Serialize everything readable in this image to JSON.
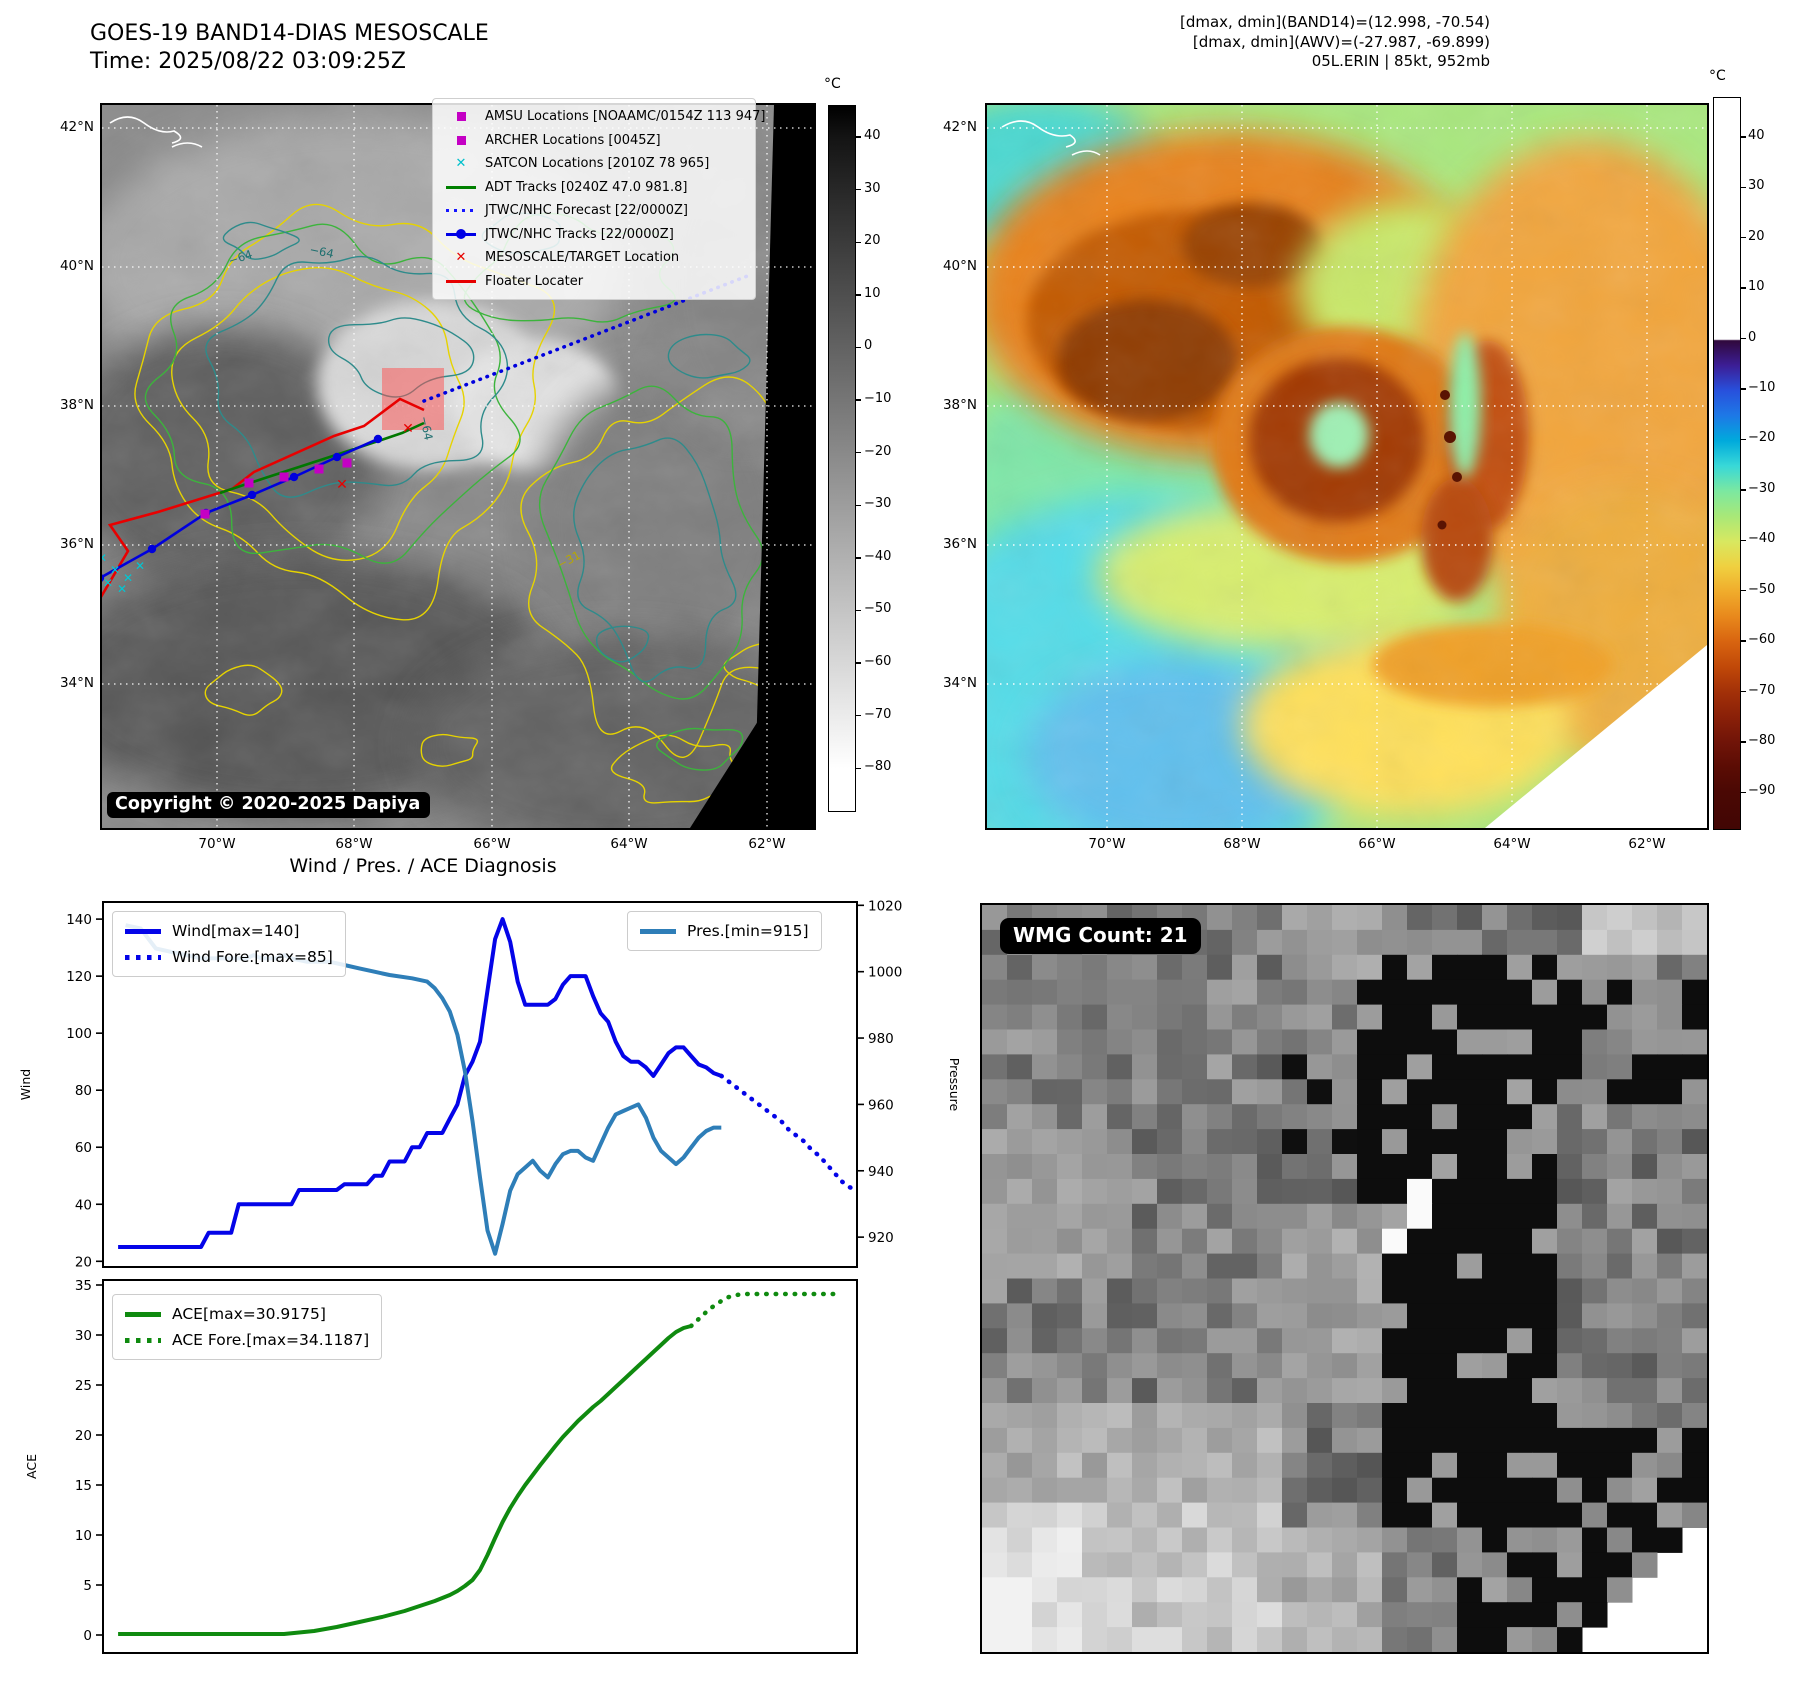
{
  "header": {
    "title_line1": "GOES-19 BAND14-DIAS MESOSCALE",
    "title_line2": "Time: 2025/08/22 03:09:25Z",
    "info_line1": "[dmax, dmin](BAND14)=(12.998, -70.54)",
    "info_line2": "[dmax, dmin](AWV)=(-27.987, -69.899)",
    "info_line3": "05L.ERIN | 85kt, 952mb"
  },
  "band14_map": {
    "lat_labels": [
      "42°N",
      "40°N",
      "38°N",
      "36°N",
      "34°N"
    ],
    "lon_labels": [
      "70°W",
      "68°W",
      "66°W",
      "64°W",
      "62°W"
    ],
    "colorbar_unit": "°C",
    "colorbar_ticks": [
      40,
      30,
      20,
      10,
      0,
      -10,
      -20,
      -30,
      -40,
      -50,
      -60,
      -70,
      -80
    ],
    "watermark": "Copyright © 2020-2025 Dapiya",
    "contour_labels": [
      "−64",
      "−64",
      "−64",
      "−31"
    ],
    "legend": [
      {
        "marker": "square",
        "color": "#c400c4",
        "label": "AMSU Locations [NOAAMC/0154Z 113 947]"
      },
      {
        "marker": "square",
        "color": "#c400c4",
        "label": "ARCHER Locations [0045Z]"
      },
      {
        "marker": "x",
        "color": "#00c0cc",
        "label": "SATCON Locations [2010Z 78 965]"
      },
      {
        "marker": "line",
        "color": "#008000",
        "label": "ADT Tracks [0240Z 47.0 981.8]"
      },
      {
        "marker": "dotted",
        "color": "#1515ff",
        "label": "JTWC/NHC Forecast [22/0000Z]"
      },
      {
        "marker": "line-dot",
        "color": "#0000e6",
        "label": "JTWC/NHC Tracks [22/0000Z]"
      },
      {
        "marker": "x",
        "color": "#e60000",
        "label": "MESOSCALE/TARGET Location"
      },
      {
        "marker": "line",
        "color": "#e60000",
        "label": "Floater Locater"
      }
    ]
  },
  "awv_map": {
    "lat_labels": [
      "42°N",
      "40°N",
      "38°N",
      "36°N",
      "34°N"
    ],
    "lon_labels": [
      "70°W",
      "68°W",
      "66°W",
      "64°W",
      "62°W"
    ],
    "colorbar_unit": "°C",
    "colorbar_ticks": [
      40,
      30,
      20,
      10,
      0,
      -10,
      -20,
      -30,
      -40,
      -50,
      -60,
      -70,
      -80,
      -90
    ]
  },
  "wmg": {
    "count_label": "WMG Count: 21"
  },
  "diagnosis_title": "Wind / Pres. / ACE Diagnosis",
  "chart_data": [
    {
      "type": "line",
      "title": "Wind / Pres. / ACE Diagnosis",
      "ylabel_left": "Wind",
      "ylabel_right": "Pressure",
      "yticks_left": [
        20,
        40,
        60,
        80,
        100,
        120,
        140
      ],
      "yticks_right": [
        920,
        940,
        960,
        980,
        1000,
        1020
      ],
      "ylim_left": [
        18,
        146
      ],
      "ylim_right": [
        911,
        1021
      ],
      "xlim": [
        0,
        100
      ],
      "grid": false,
      "legend_left": [
        {
          "label": "Wind[max=140]",
          "style": "solid",
          "color": "#0404e8"
        },
        {
          "label": "Wind Fore.[max=85]",
          "style": "dotted",
          "color": "#0404e8"
        }
      ],
      "legend_right": [
        {
          "label": "Pres.[min=915]",
          "style": "solid",
          "color": "#2e7eb8"
        }
      ],
      "series": [
        {
          "name": "Wind",
          "axis": "left",
          "style": "solid",
          "color": "#0404e8",
          "points": [
            [
              2,
              25
            ],
            [
              13,
              25
            ],
            [
              14,
              30
            ],
            [
              17,
              30
            ],
            [
              18,
              40
            ],
            [
              25,
              40
            ],
            [
              26,
              45
            ],
            [
              31,
              45
            ],
            [
              32,
              47
            ],
            [
              35,
              47
            ],
            [
              36,
              50
            ],
            [
              37,
              50
            ],
            [
              38,
              55
            ],
            [
              40,
              55
            ],
            [
              41,
              60
            ],
            [
              42,
              60
            ],
            [
              43,
              65
            ],
            [
              45,
              65
            ],
            [
              46,
              70
            ],
            [
              47,
              75
            ],
            [
              48,
              85
            ],
            [
              49,
              90
            ],
            [
              50,
              97
            ],
            [
              51,
              115
            ],
            [
              52,
              133
            ],
            [
              53,
              140
            ],
            [
              54,
              132
            ],
            [
              55,
              118
            ],
            [
              56,
              110
            ],
            [
              59,
              110
            ],
            [
              60,
              112
            ],
            [
              61,
              117
            ],
            [
              62,
              120
            ],
            [
              64,
              120
            ],
            [
              65,
              113
            ],
            [
              66,
              107
            ],
            [
              67,
              104
            ],
            [
              68,
              97
            ],
            [
              69,
              92
            ],
            [
              70,
              90
            ],
            [
              71,
              90
            ],
            [
              72,
              88
            ],
            [
              73,
              85
            ],
            [
              74,
              89
            ],
            [
              75,
              93
            ],
            [
              76,
              95
            ],
            [
              77,
              95
            ],
            [
              78,
              92
            ],
            [
              79,
              89
            ],
            [
              80,
              88
            ],
            [
              81,
              86
            ],
            [
              82,
              85
            ]
          ]
        },
        {
          "name": "Wind Fore.",
          "axis": "left",
          "style": "dotted",
          "color": "#0404e8",
          "points": [
            [
              82,
              85
            ],
            [
              84,
              81
            ],
            [
              86,
              77
            ],
            [
              88,
              73
            ],
            [
              90,
              69
            ],
            [
              91,
              66
            ],
            [
              92,
              64
            ],
            [
              93,
              62
            ],
            [
              94,
              59
            ],
            [
              95,
              57
            ],
            [
              96,
              54
            ],
            [
              97,
              51
            ],
            [
              98,
              48
            ],
            [
              99,
              46
            ],
            [
              100,
              45
            ]
          ]
        },
        {
          "name": "Pres.",
          "axis": "right",
          "style": "solid",
          "color": "#2e7eb8",
          "points": [
            [
              3,
              1014
            ],
            [
              5,
              1013
            ],
            [
              6,
              1010
            ],
            [
              7,
              1007
            ],
            [
              9,
              1006
            ],
            [
              11,
              1005
            ],
            [
              13,
              1004
            ],
            [
              19,
              1004
            ],
            [
              20,
              1005
            ],
            [
              21,
              1004
            ],
            [
              23,
              1004
            ],
            [
              24,
              1005
            ],
            [
              25,
              1004
            ],
            [
              27,
              1003
            ],
            [
              30,
              1003
            ],
            [
              32,
              1002
            ],
            [
              34,
              1001
            ],
            [
              36,
              1000
            ],
            [
              38,
              999
            ],
            [
              41,
              998
            ],
            [
              43,
              997
            ],
            [
              44,
              995
            ],
            [
              45,
              992
            ],
            [
              46,
              988
            ],
            [
              47,
              981
            ],
            [
              48,
              970
            ],
            [
              49,
              955
            ],
            [
              50,
              938
            ],
            [
              51,
              922
            ],
            [
              52,
              915
            ],
            [
              53,
              924
            ],
            [
              54,
              934
            ],
            [
              55,
              939
            ],
            [
              56,
              941
            ],
            [
              57,
              943
            ],
            [
              58,
              940
            ],
            [
              59,
              938
            ],
            [
              60,
              942
            ],
            [
              61,
              945
            ],
            [
              62,
              946
            ],
            [
              63,
              946
            ],
            [
              64,
              944
            ],
            [
              65,
              943
            ],
            [
              66,
              948
            ],
            [
              67,
              953
            ],
            [
              68,
              957
            ],
            [
              69,
              958
            ],
            [
              70,
              959
            ],
            [
              71,
              960
            ],
            [
              72,
              956
            ],
            [
              73,
              950
            ],
            [
              74,
              946
            ],
            [
              75,
              944
            ],
            [
              76,
              942
            ],
            [
              77,
              944
            ],
            [
              78,
              947
            ],
            [
              79,
              950
            ],
            [
              80,
              952
            ],
            [
              81,
              953
            ],
            [
              82,
              953
            ]
          ]
        }
      ]
    },
    {
      "type": "line",
      "ylabel_left": "ACE",
      "yticks_left": [
        0,
        5,
        10,
        15,
        20,
        25,
        30,
        35
      ],
      "ylim_left": [
        -1.8,
        35.5
      ],
      "xlim": [
        0,
        100
      ],
      "grid": false,
      "legend_left": [
        {
          "label": "ACE[max=30.9175]",
          "style": "solid",
          "color": "#0f8a0f"
        },
        {
          "label": "ACE Fore.[max=34.1187]",
          "style": "dotted",
          "color": "#0f8a0f"
        }
      ],
      "series": [
        {
          "name": "ACE",
          "axis": "left",
          "style": "solid",
          "color": "#0f8a0f",
          "points": [
            [
              2,
              0.1
            ],
            [
              24,
              0.1
            ],
            [
              28,
              0.4
            ],
            [
              31,
              0.8
            ],
            [
              34,
              1.3
            ],
            [
              37,
              1.8
            ],
            [
              40,
              2.4
            ],
            [
              42,
              2.9
            ],
            [
              44,
              3.4
            ],
            [
              46,
              4
            ],
            [
              47,
              4.4
            ],
            [
              48,
              4.9
            ],
            [
              49,
              5.5
            ],
            [
              50,
              6.5
            ],
            [
              51,
              8
            ],
            [
              52,
              9.7
            ],
            [
              53,
              11.3
            ],
            [
              54,
              12.7
            ],
            [
              55,
              13.9
            ],
            [
              56,
              15
            ],
            [
              58,
              17
            ],
            [
              60,
              18.9
            ],
            [
              61,
              19.8
            ],
            [
              62,
              20.6
            ],
            [
              63,
              21.4
            ],
            [
              64,
              22.1
            ],
            [
              65,
              22.8
            ],
            [
              66,
              23.4
            ],
            [
              67,
              24.1
            ],
            [
              68,
              24.8
            ],
            [
              69,
              25.5
            ],
            [
              70,
              26.2
            ],
            [
              71,
              26.9
            ],
            [
              72,
              27.6
            ],
            [
              73,
              28.3
            ],
            [
              74,
              29
            ],
            [
              75,
              29.7
            ],
            [
              76,
              30.3
            ],
            [
              77,
              30.7
            ],
            [
              78,
              30.9
            ]
          ]
        },
        {
          "name": "ACE Fore.",
          "axis": "left",
          "style": "dotted",
          "color": "#0f8a0f",
          "points": [
            [
              78,
              30.9
            ],
            [
              79,
              31.6
            ],
            [
              80,
              32.3
            ],
            [
              81,
              32.9
            ],
            [
              82,
              33.4
            ],
            [
              83,
              33.8
            ],
            [
              84,
              34
            ],
            [
              85,
              34.1
            ],
            [
              98,
              34.1
            ]
          ]
        }
      ]
    }
  ],
  "colors": {
    "wind_blue": "#0404e8",
    "pressure_blue": "#2e7eb8",
    "ace_green": "#0f8a0f",
    "track_red": "#e80000",
    "track_blue": "#0000dd",
    "track_green": "#007800",
    "satcon_cyan": "#00c8d4",
    "amsu_magenta": "#c400c4",
    "contour_yellow": "#e6d300",
    "contour_green": "#3cb43c",
    "contour_teal": "#2e8b8b"
  }
}
